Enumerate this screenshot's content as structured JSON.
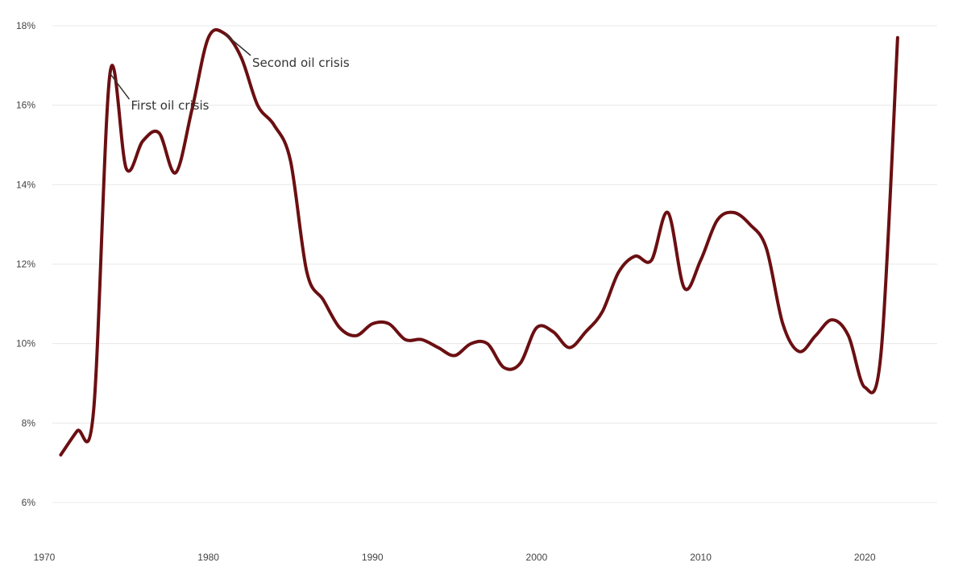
{
  "chart_data": {
    "type": "line",
    "title": "",
    "xlabel": "",
    "ylabel": "",
    "xlim": [
      1970,
      2025
    ],
    "ylim": [
      5,
      18
    ],
    "grid": true,
    "legend": "none",
    "x_ticks": [
      1970,
      1980,
      1990,
      2000,
      2010,
      2020
    ],
    "x_tick_labels": [
      "1970",
      "1980",
      "1990",
      "2000",
      "2010",
      "2020"
    ],
    "y_ticks": [
      6,
      8,
      10,
      12,
      14,
      16,
      18
    ],
    "y_tick_labels": [
      "6%",
      "8%",
      "10%",
      "12%",
      "14%",
      "16%",
      "18%"
    ],
    "series": [
      {
        "color": "#6b0f12",
        "x": [
          1971,
          1972,
          1973,
          1974,
          1975,
          1976,
          1977,
          1978,
          1979,
          1980,
          1981,
          1982,
          1983,
          1984,
          1985,
          1986,
          1987,
          1988,
          1989,
          1990,
          1991,
          1992,
          1993,
          1994,
          1995,
          1996,
          1997,
          1998,
          1999,
          2000,
          2001,
          2002,
          2003,
          2004,
          2005,
          2006,
          2007,
          2008,
          2009,
          2010,
          2011,
          2012,
          2013,
          2014,
          2015,
          2016,
          2017,
          2018,
          2019,
          2020,
          2021,
          2022
        ],
        "y": [
          7.2,
          7.8,
          8.3,
          16.8,
          14.4,
          15.1,
          15.3,
          14.3,
          15.9,
          17.7,
          17.8,
          17.2,
          16.0,
          15.5,
          14.6,
          11.8,
          11.1,
          10.4,
          10.2,
          10.5,
          10.5,
          10.1,
          10.1,
          9.9,
          9.7,
          10.0,
          10.0,
          9.4,
          9.5,
          10.4,
          10.3,
          9.9,
          10.3,
          10.8,
          11.8,
          12.2,
          12.1,
          13.3,
          11.4,
          12.1,
          13.1,
          13.3,
          13.0,
          12.4,
          10.5,
          9.8,
          10.2,
          10.6,
          10.2,
          8.9,
          9.8,
          17.7
        ]
      }
    ],
    "annotations": [
      {
        "text": "First oil crisis",
        "x": 1974,
        "y": 16.8
      },
      {
        "text": "Second oil crisis",
        "x": 1981,
        "y": 17.8
      }
    ]
  }
}
